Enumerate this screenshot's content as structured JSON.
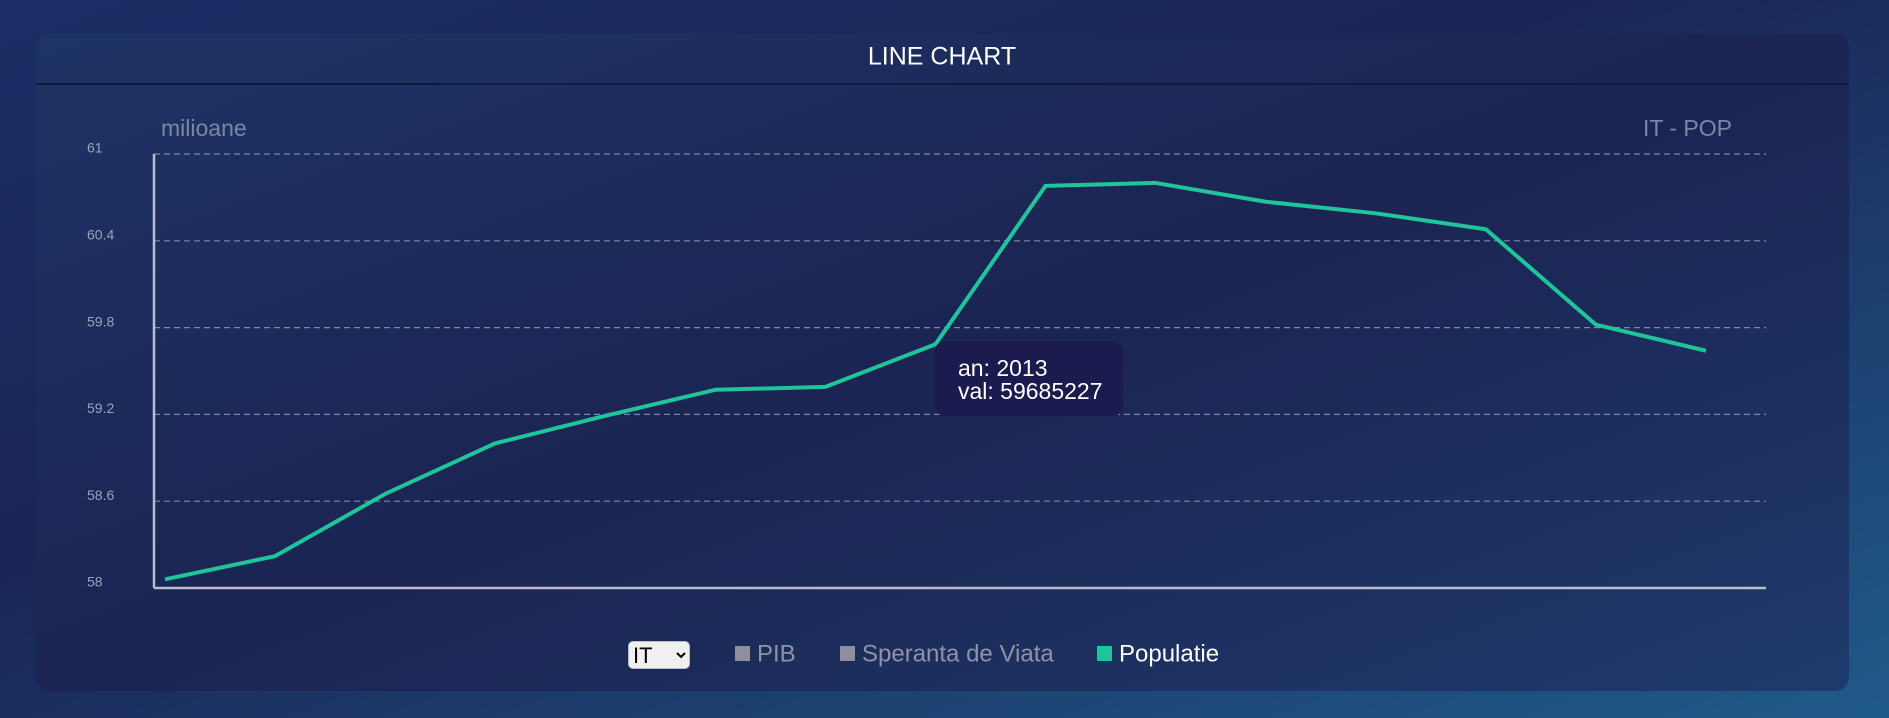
{
  "header": {
    "title": "LINE CHART"
  },
  "chart_data": {
    "type": "line",
    "y_label": "milioane",
    "corner_label": "IT - POP",
    "categories": [
      null,
      null,
      null,
      null,
      null,
      null,
      null,
      null,
      null,
      null,
      null,
      null,
      null,
      null,
      null
    ],
    "series": [
      {
        "name": "Populatie",
        "color": "#1fc49a",
        "values": [
          58.06,
          58.22,
          58.65,
          59.0,
          59.19,
          59.37,
          59.39,
          59.685227,
          60.78,
          60.8,
          60.67,
          60.59,
          60.48,
          59.82,
          59.64
        ]
      }
    ],
    "ylim": [
      58,
      61
    ],
    "yticks": [
      58,
      58.6,
      59.2,
      59.8,
      60.4,
      61
    ],
    "grid": true,
    "tooltip": {
      "year": "an: 2013",
      "value": "val: 59685227",
      "index": 7
    }
  },
  "controls": {
    "country": "IT",
    "legend": [
      {
        "name": "PIB",
        "color": "#8e8e9c",
        "active": false
      },
      {
        "name": "Speranta de Viata",
        "color": "#8e8e9c",
        "active": false
      },
      {
        "name": "Populatie",
        "color": "#1fc49a",
        "active": true
      }
    ]
  }
}
